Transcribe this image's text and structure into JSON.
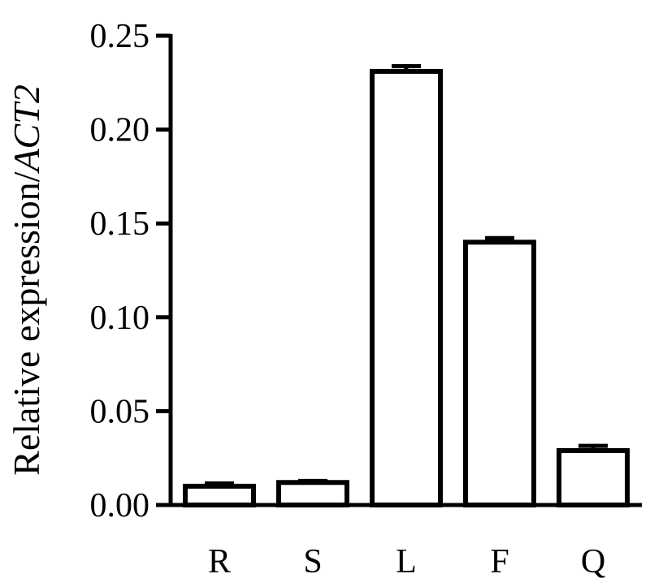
{
  "chart_data": {
    "type": "bar",
    "categories": [
      "R",
      "S",
      "L",
      "F",
      "Q"
    ],
    "values": [
      0.01,
      0.012,
      0.231,
      0.14,
      0.029
    ],
    "errors": [
      0.0015,
      0.0008,
      0.0028,
      0.0022,
      0.0025
    ],
    "ylabel": "Relative expression/",
    "ylabel_italic": "ACT2",
    "ylim": [
      0,
      0.25
    ],
    "yticks": [
      "0.00",
      "0.05",
      "0.10",
      "0.15",
      "0.20",
      "0.25"
    ],
    "grid": false,
    "legend": "none",
    "colors": {
      "bar_fill": "#ffffff",
      "stroke": "#000000"
    }
  }
}
